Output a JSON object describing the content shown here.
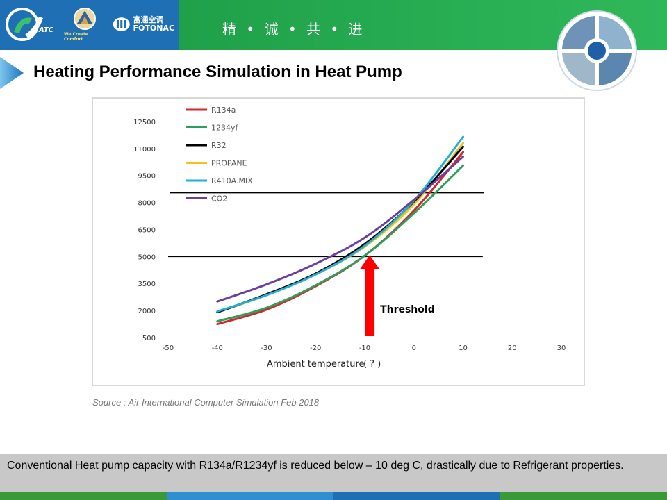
{
  "header": {
    "slogan": "精 • 诚 • 共 • 进",
    "logos": [
      {
        "name": "ATC",
        "text": "ATC"
      },
      {
        "name": "We Create Comfort",
        "text": "We Create Comfort"
      },
      {
        "name": "Fotonac",
        "text": "富通空调 FOTONAC"
      }
    ],
    "colors": {
      "blue": "#1f6fb4",
      "green": "#27ad53"
    }
  },
  "title": "Heating Performance Simulation in Heat Pump",
  "source": "Source : Air International Computer Simulation Feb 2018",
  "footnote": "Conventional Heat pump capacity with R134a/R1234yf is reduced below – 10 deg C, drastically due to Refrigerant properties.",
  "chart_data": {
    "type": "line",
    "xlabel": "Ambient temperature",
    "xlabel_unit": "( ? )",
    "xlim": [
      -50,
      30
    ],
    "ylim": [
      500,
      13000
    ],
    "x_ticks": [
      -50,
      -40,
      -30,
      -20,
      -10,
      0,
      10,
      20,
      30
    ],
    "x_tick_labels": [
      "-50",
      "-40",
      "-30",
      "-20",
      "-10",
      "0",
      "10",
      "20",
      "30"
    ],
    "y_ticks": [
      500,
      2000,
      3500,
      5000,
      6500,
      8000,
      9500,
      11000,
      12500
    ],
    "y_tick_labels": [
      "500",
      "2000",
      "3500",
      "5000",
      "6500",
      "8000",
      "9500",
      "11000",
      "12500"
    ],
    "legend_position": "top-left",
    "series": [
      {
        "name": "R134a",
        "color": "#d62728",
        "x": [
          -40,
          -30,
          -20,
          -10,
          0,
          10
        ],
        "values": [
          1250,
          2050,
          3350,
          5050,
          7550,
          10800
        ]
      },
      {
        "name": "1234yf",
        "color": "#2ca05a",
        "x": [
          -40,
          -30,
          -20,
          -10,
          0,
          10
        ],
        "values": [
          1400,
          2150,
          3400,
          5050,
          7400,
          10050
        ]
      },
      {
        "name": "R32",
        "color": "#000000",
        "x": [
          -40,
          -30,
          -20,
          -10,
          0,
          10
        ],
        "values": [
          1900,
          2900,
          4050,
          5700,
          8050,
          11100
        ]
      },
      {
        "name": "PROPANE",
        "color": "#f2c318",
        "x": [
          -40,
          -30,
          -20,
          -10,
          0,
          10
        ],
        "values": [
          1900,
          2850,
          4000,
          5550,
          7900,
          11300
        ]
      },
      {
        "name": "R410A.MIX",
        "color": "#1fb0d8",
        "x": [
          -40,
          -30,
          -20,
          -10,
          0,
          10
        ],
        "values": [
          1950,
          2850,
          4000,
          5600,
          8100,
          11650
        ]
      },
      {
        "name": "CO2",
        "color": "#6b3fa0",
        "x": [
          -40,
          -30,
          -20,
          -10,
          0,
          10
        ],
        "values": [
          2500,
          3450,
          4600,
          6050,
          8150,
          10550
        ]
      }
    ],
    "reference_lines": [
      8000,
      5000
    ],
    "annotation": {
      "text": "Threshold",
      "x": -9,
      "y_top": 5000
    }
  }
}
